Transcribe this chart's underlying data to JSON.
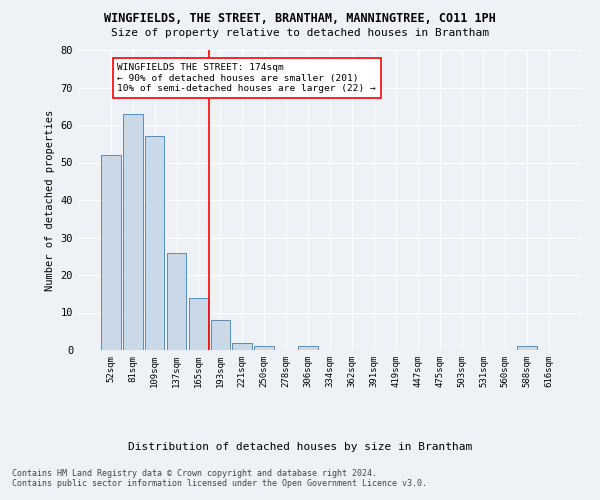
{
  "title": "WINGFIELDS, THE STREET, BRANTHAM, MANNINGTREE, CO11 1PH",
  "subtitle": "Size of property relative to detached houses in Brantham",
  "xlabel": "Distribution of detached houses by size in Brantham",
  "ylabel": "Number of detached properties",
  "categories": [
    "52sqm",
    "81sqm",
    "109sqm",
    "137sqm",
    "165sqm",
    "193sqm",
    "221sqm",
    "250sqm",
    "278sqm",
    "306sqm",
    "334sqm",
    "362sqm",
    "391sqm",
    "419sqm",
    "447sqm",
    "475sqm",
    "503sqm",
    "531sqm",
    "560sqm",
    "588sqm",
    "616sqm"
  ],
  "values": [
    52,
    63,
    57,
    26,
    14,
    8,
    2,
    1,
    0,
    1,
    0,
    0,
    0,
    0,
    0,
    0,
    0,
    0,
    0,
    1,
    0
  ],
  "bar_color": "#c9d9e8",
  "bar_edge_color": "#5b8db8",
  "vline_x": 4.5,
  "vline_color": "red",
  "annotation_line1": "WINGFIELDS THE STREET: 174sqm",
  "annotation_line2": "← 90% of detached houses are smaller (201)",
  "annotation_line3": "10% of semi-detached houses are larger (22) →",
  "annotation_box_color": "white",
  "annotation_box_edge": "red",
  "ylim": [
    0,
    80
  ],
  "yticks": [
    0,
    10,
    20,
    30,
    40,
    50,
    60,
    70,
    80
  ],
  "footer1": "Contains HM Land Registry data © Crown copyright and database right 2024.",
  "footer2": "Contains public sector information licensed under the Open Government Licence v3.0.",
  "bg_color": "#eef2f7",
  "plot_bg_color": "#eef2f7"
}
